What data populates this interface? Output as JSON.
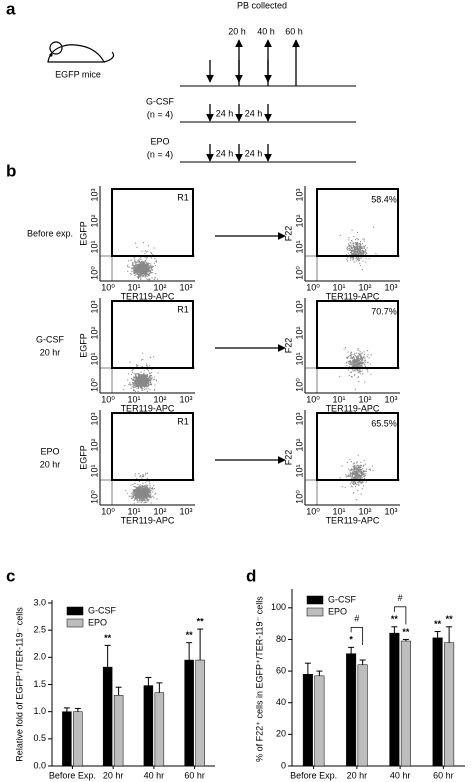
{
  "panels": [
    "a",
    "b",
    "c",
    "d"
  ],
  "timeline": {
    "title": "PB collected",
    "times": [
      "20 h",
      "40 h",
      "60 h"
    ],
    "subject": "EGFP mice",
    "groups": [
      {
        "name": "G-CSF",
        "n": "(n = 4)",
        "intervals": [
          "24 h",
          "24 h"
        ]
      },
      {
        "name": "EPO",
        "n": "(n = 4)",
        "intervals": [
          "24 h",
          "24 h"
        ]
      }
    ]
  },
  "flow": {
    "x_label": "TER119-APC",
    "ticks": [
      "10⁰",
      "10¹",
      "10²",
      "10³"
    ],
    "rows": [
      {
        "label": [
          "Before exp."
        ],
        "left": {
          "y_label": "EGFP",
          "gate": "R1"
        },
        "right": {
          "y_label": "F22",
          "percent": "58.4%"
        }
      },
      {
        "label": [
          "G-CSF",
          "20 hr"
        ],
        "left": {
          "y_label": "EGFP",
          "gate": "R1"
        },
        "right": {
          "y_label": "F22",
          "percent": "70.7%"
        }
      },
      {
        "label": [
          "EPO",
          "20 hr"
        ],
        "left": {
          "y_label": "EGFP",
          "gate": "R1"
        },
        "right": {
          "y_label": "F22",
          "percent": "65.5%"
        }
      }
    ]
  },
  "chart_data": [
    {
      "type": "bar",
      "y_label": "Relative fold of EGFP⁺/TER-119⁻ cells",
      "categories": [
        "Before Exp.",
        "20 hr",
        "40 hr",
        "60 hr"
      ],
      "series": [
        {
          "name": "G-CSF",
          "color": "#000000",
          "values": [
            1.0,
            1.82,
            1.48,
            1.95
          ],
          "errors": [
            0.07,
            0.4,
            0.15,
            0.32
          ],
          "significance": [
            null,
            "**",
            null,
            "**"
          ]
        },
        {
          "name": "EPO",
          "color": "#bdbdbd",
          "values": [
            1.0,
            1.3,
            1.35,
            1.95
          ],
          "errors": [
            0.06,
            0.15,
            0.18,
            0.57
          ],
          "significance": [
            null,
            null,
            null,
            "**"
          ]
        }
      ],
      "ylim": [
        0,
        3
      ],
      "yticks": [
        {
          "value": 0,
          "label": "0.0"
        },
        0.5,
        {
          "value": 1,
          "label": "1.0"
        },
        1.5,
        {
          "value": 2,
          "label": "2.0"
        },
        2.5,
        {
          "value": 3,
          "label": "3.0"
        }
      ],
      "legend": "upper left"
    },
    {
      "type": "bar",
      "y_label": "% of F22⁺ cells in EGFP⁺/TER-119⁻ cells",
      "categories": [
        "Before Exp.",
        "20 hr",
        "40 hr",
        "60 hr"
      ],
      "series": [
        {
          "name": "G-CSF",
          "color": "#000000",
          "values": [
            58,
            71,
            84,
            81
          ],
          "errors": [
            7,
            4,
            4,
            4
          ],
          "significance": [
            null,
            "*",
            "**",
            "**"
          ]
        },
        {
          "name": "EPO",
          "color": "#bdbdbd",
          "values": [
            57,
            64,
            79,
            78
          ],
          "errors": [
            3,
            3,
            1,
            10
          ],
          "significance": [
            null,
            null,
            "**",
            "**"
          ]
        }
      ],
      "bracket_labels": [
        null,
        "#",
        "#",
        null
      ],
      "ylim": [
        0,
        110
      ],
      "yticks": [
        0,
        20,
        40,
        60,
        80,
        100
      ],
      "legend": "upper left"
    }
  ]
}
